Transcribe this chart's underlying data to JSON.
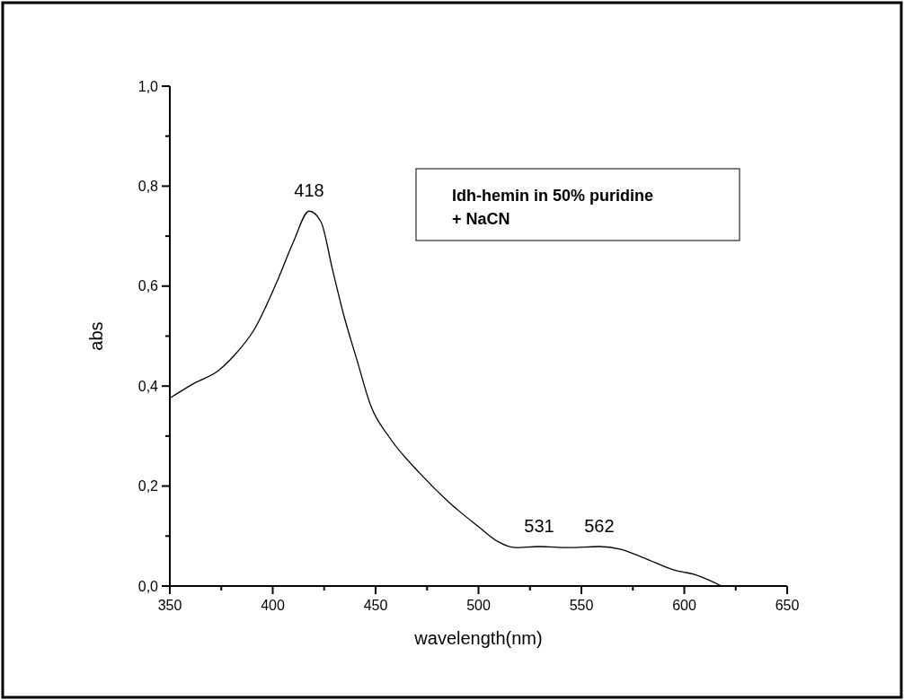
{
  "chart_data": {
    "type": "line",
    "xlabel": "wavelength(nm)",
    "ylabel": "abs",
    "annotations": [
      {
        "text": "418",
        "x": 417.7,
        "y": 0.75
      },
      {
        "text": "531",
        "x": 529.5,
        "y": 0.079
      },
      {
        "text": "562",
        "x": 558.7,
        "y": 0.079
      },
      "Idh-hemin in 50% puridine\n+ NaCN"
    ],
    "series": [
      {
        "color": "#000000",
        "x": [
          350.4,
          362,
          373.6,
          381,
          391,
          402.8,
          410,
          417.7,
          423.4,
          429,
          434.7,
          440.8,
          447.8,
          456.6,
          471.4,
          485.8,
          500.2,
          509,
          517.7,
          529.5,
          543.9,
          558.7,
          568.8,
          580.6,
          595,
          605,
          618.1
        ],
        "values": [
          0.377,
          0.406,
          0.431,
          0.46,
          0.513,
          0.616,
          0.688,
          0.75,
          0.729,
          0.634,
          0.539,
          0.454,
          0.359,
          0.298,
          0.226,
          0.167,
          0.118,
          0.09,
          0.077,
          0.079,
          0.077,
          0.079,
          0.074,
          0.056,
          0.032,
          0.023,
          0.0
        ]
      }
    ],
    "xlim": [
      350,
      650
    ],
    "xticks": [
      350,
      {
        "value": 375,
        "label": null
      },
      400,
      {
        "value": 425,
        "label": null
      },
      450,
      {
        "value": 475,
        "label": null
      },
      500,
      {
        "value": 525,
        "label": null
      },
      550,
      {
        "value": 575,
        "label": null
      },
      600,
      {
        "value": 625,
        "label": null
      },
      650
    ],
    "ylim": [
      0,
      1
    ],
    "yticks": [
      {
        "value": 0,
        "label": "0,0"
      },
      {
        "value": 0.1,
        "label": null
      },
      {
        "value": 0.2,
        "label": "0,2"
      },
      {
        "value": 0.3,
        "label": null
      },
      {
        "value": 0.4,
        "label": "0,4"
      },
      {
        "value": 0.5,
        "label": null
      },
      {
        "value": 0.6,
        "label": "0,6"
      },
      {
        "value": 0.7,
        "label": null
      },
      {
        "value": 0.8,
        "label": "0,8"
      },
      {
        "value": 0.9,
        "label": null
      },
      {
        "value": 1,
        "label": "1,0"
      }
    ],
    "grid": false,
    "marker": "none",
    "line_style": "solid"
  }
}
